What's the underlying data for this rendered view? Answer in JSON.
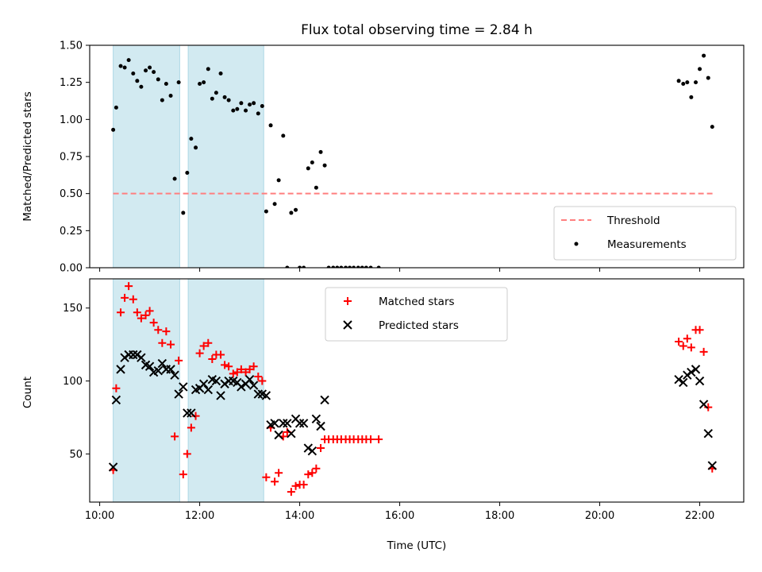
{
  "chart_data": {
    "title": "Flux total observing time = 2.84 h",
    "xlabel": "Time (UTC)",
    "x_ticks": [
      "10:00",
      "12:00",
      "14:00",
      "16:00",
      "18:00",
      "20:00",
      "22:00"
    ],
    "x_tick_values": [
      10,
      12,
      14,
      16,
      18,
      20,
      22
    ],
    "xlim": [
      9.8,
      22.88
    ],
    "shaded_intervals": [
      [
        10.27,
        11.6
      ],
      [
        11.77,
        13.28
      ]
    ],
    "shade_color": "#add8e6",
    "panels": [
      {
        "type": "scatter",
        "ylabel": "Matched/Predicted stars",
        "ylim": [
          0,
          1.5
        ],
        "y_ticks": [
          "0.00",
          "0.25",
          "0.50",
          "0.75",
          "1.00",
          "1.25",
          "1.50"
        ],
        "y_tick_values": [
          0,
          0.25,
          0.5,
          0.75,
          1.0,
          1.25,
          1.5
        ],
        "legend_position": "lower-right",
        "threshold": {
          "name": "Threshold",
          "value": 0.5,
          "x_range": [
            10.27,
            22.27
          ],
          "color": "#ff7f7f",
          "style": "dashed"
        },
        "series": [
          {
            "name": "Measurements",
            "color": "#000000",
            "marker": "dot",
            "points": [
              [
                10.27,
                0.93
              ],
              [
                10.33,
                1.08
              ],
              [
                10.42,
                1.36
              ],
              [
                10.5,
                1.35
              ],
              [
                10.58,
                1.4
              ],
              [
                10.67,
                1.31
              ],
              [
                10.75,
                1.26
              ],
              [
                10.83,
                1.22
              ],
              [
                10.92,
                1.33
              ],
              [
                11.0,
                1.35
              ],
              [
                11.08,
                1.32
              ],
              [
                11.17,
                1.27
              ],
              [
                11.25,
                1.13
              ],
              [
                11.33,
                1.24
              ],
              [
                11.42,
                1.16
              ],
              [
                11.5,
                0.6
              ],
              [
                11.58,
                1.25
              ],
              [
                11.67,
                0.37
              ],
              [
                11.75,
                0.64
              ],
              [
                11.83,
                0.87
              ],
              [
                11.92,
                0.81
              ],
              [
                12.0,
                1.24
              ],
              [
                12.08,
                1.25
              ],
              [
                12.17,
                1.34
              ],
              [
                12.25,
                1.14
              ],
              [
                12.33,
                1.18
              ],
              [
                12.42,
                1.31
              ],
              [
                12.5,
                1.15
              ],
              [
                12.58,
                1.13
              ],
              [
                12.67,
                1.06
              ],
              [
                12.75,
                1.07
              ],
              [
                12.83,
                1.11
              ],
              [
                12.92,
                1.06
              ],
              [
                13.0,
                1.1
              ],
              [
                13.08,
                1.11
              ],
              [
                13.17,
                1.04
              ],
              [
                13.25,
                1.09
              ],
              [
                13.33,
                0.38
              ],
              [
                13.42,
                0.96
              ],
              [
                13.5,
                0.43
              ],
              [
                13.58,
                0.59
              ],
              [
                13.67,
                0.89
              ],
              [
                13.75,
                0.0
              ],
              [
                13.83,
                0.37
              ],
              [
                13.92,
                0.39
              ],
              [
                14.0,
                0.0
              ],
              [
                14.08,
                0.0
              ],
              [
                14.17,
                0.67
              ],
              [
                14.25,
                0.71
              ],
              [
                14.33,
                0.54
              ],
              [
                14.42,
                0.78
              ],
              [
                14.5,
                0.69
              ],
              [
                14.58,
                0.0
              ],
              [
                14.67,
                0.0
              ],
              [
                14.75,
                0.0
              ],
              [
                14.83,
                0.0
              ],
              [
                14.92,
                0.0
              ],
              [
                15.0,
                0.0
              ],
              [
                15.08,
                0.0
              ],
              [
                15.17,
                0.0
              ],
              [
                15.25,
                0.0
              ],
              [
                15.33,
                0.0
              ],
              [
                15.42,
                0.0
              ],
              [
                15.58,
                0.0
              ],
              [
                21.58,
                1.26
              ],
              [
                21.67,
                1.24
              ],
              [
                21.75,
                1.25
              ],
              [
                21.83,
                1.15
              ],
              [
                21.92,
                1.25
              ],
              [
                22.0,
                1.34
              ],
              [
                22.08,
                1.43
              ],
              [
                22.17,
                1.28
              ],
              [
                22.25,
                0.95
              ]
            ]
          }
        ]
      },
      {
        "type": "scatter",
        "ylabel": "Count",
        "ylim": [
          17,
          170
        ],
        "y_ticks": [
          "50",
          "100",
          "150"
        ],
        "y_tick_values": [
          50,
          100,
          150
        ],
        "legend_position": "upper-center",
        "series": [
          {
            "name": "Matched stars",
            "color": "#ff0000",
            "marker": "plus",
            "points": [
              [
                10.27,
                39
              ],
              [
                10.33,
                95
              ],
              [
                10.42,
                147
              ],
              [
                10.5,
                157
              ],
              [
                10.58,
                165
              ],
              [
                10.67,
                156
              ],
              [
                10.75,
                147
              ],
              [
                10.83,
                143
              ],
              [
                10.92,
                145
              ],
              [
                11.0,
                148
              ],
              [
                11.08,
                140
              ],
              [
                11.17,
                135
              ],
              [
                11.25,
                126
              ],
              [
                11.33,
                134
              ],
              [
                11.42,
                125
              ],
              [
                11.5,
                62
              ],
              [
                11.58,
                114
              ],
              [
                11.67,
                36
              ],
              [
                11.75,
                50
              ],
              [
                11.83,
                68
              ],
              [
                11.92,
                76
              ],
              [
                12.0,
                119
              ],
              [
                12.08,
                124
              ],
              [
                12.17,
                126
              ],
              [
                12.25,
                115
              ],
              [
                12.33,
                118
              ],
              [
                12.42,
                118
              ],
              [
                12.5,
                111
              ],
              [
                12.58,
                110
              ],
              [
                12.67,
                105
              ],
              [
                12.75,
                106
              ],
              [
                12.83,
                108
              ],
              [
                12.92,
                106
              ],
              [
                13.0,
                108
              ],
              [
                13.08,
                110
              ],
              [
                13.17,
                103
              ],
              [
                13.25,
                100
              ],
              [
                13.33,
                34
              ],
              [
                13.42,
                68
              ],
              [
                13.5,
                31
              ],
              [
                13.58,
                37
              ],
              [
                13.67,
                62
              ],
              [
                13.75,
                65
              ],
              [
                13.83,
                24
              ],
              [
                13.92,
                28
              ],
              [
                14.0,
                29
              ],
              [
                14.08,
                29
              ],
              [
                14.17,
                36
              ],
              [
                14.25,
                37
              ],
              [
                14.33,
                40
              ],
              [
                14.42,
                54
              ],
              [
                14.5,
                60
              ],
              [
                14.58,
                60
              ],
              [
                14.67,
                60
              ],
              [
                14.75,
                60
              ],
              [
                14.83,
                60
              ],
              [
                14.92,
                60
              ],
              [
                15.0,
                60
              ],
              [
                15.08,
                60
              ],
              [
                15.17,
                60
              ],
              [
                15.25,
                60
              ],
              [
                15.33,
                60
              ],
              [
                15.42,
                60
              ],
              [
                15.58,
                60
              ],
              [
                21.58,
                127
              ],
              [
                21.67,
                124
              ],
              [
                21.75,
                129
              ],
              [
                21.83,
                123
              ],
              [
                21.92,
                135
              ],
              [
                22.0,
                135
              ],
              [
                22.08,
                120
              ],
              [
                22.17,
                82
              ],
              [
                22.25,
                40
              ]
            ]
          },
          {
            "name": "Predicted stars",
            "color": "#000000",
            "marker": "x",
            "points": [
              [
                10.27,
                41
              ],
              [
                10.33,
                87
              ],
              [
                10.42,
                108
              ],
              [
                10.5,
                116
              ],
              [
                10.58,
                118
              ],
              [
                10.67,
                118
              ],
              [
                10.75,
                118
              ],
              [
                10.83,
                116
              ],
              [
                10.92,
                111
              ],
              [
                11.0,
                110
              ],
              [
                11.08,
                106
              ],
              [
                11.17,
                107
              ],
              [
                11.25,
                112
              ],
              [
                11.33,
                108
              ],
              [
                11.42,
                108
              ],
              [
                11.5,
                104
              ],
              [
                11.58,
                91
              ],
              [
                11.67,
                96
              ],
              [
                11.75,
                78
              ],
              [
                11.83,
                78
              ],
              [
                11.92,
                94
              ],
              [
                12.0,
                95
              ],
              [
                12.08,
                98
              ],
              [
                12.17,
                94
              ],
              [
                12.25,
                101
              ],
              [
                12.33,
                100
              ],
              [
                12.42,
                90
              ],
              [
                12.5,
                98
              ],
              [
                12.58,
                100
              ],
              [
                12.67,
                100
              ],
              [
                12.75,
                99
              ],
              [
                12.83,
                96
              ],
              [
                12.92,
                98
              ],
              [
                13.0,
                101
              ],
              [
                13.08,
                97
              ],
              [
                13.17,
                91
              ],
              [
                13.25,
                91
              ],
              [
                13.33,
                90
              ],
              [
                13.42,
                70
              ],
              [
                13.5,
                71
              ],
              [
                13.58,
                63
              ],
              [
                13.67,
                71
              ],
              [
                13.75,
                71
              ],
              [
                13.83,
                64
              ],
              [
                13.92,
                74
              ],
              [
                14.0,
                71
              ],
              [
                14.08,
                71
              ],
              [
                14.17,
                54
              ],
              [
                14.25,
                52
              ],
              [
                14.33,
                74
              ],
              [
                14.42,
                69
              ],
              [
                14.5,
                87
              ],
              [
                21.58,
                101
              ],
              [
                21.67,
                99
              ],
              [
                21.75,
                104
              ],
              [
                21.83,
                106
              ],
              [
                21.92,
                108
              ],
              [
                22.0,
                100
              ],
              [
                22.08,
                84
              ],
              [
                22.17,
                64
              ],
              [
                22.25,
                42
              ]
            ]
          }
        ]
      }
    ]
  }
}
